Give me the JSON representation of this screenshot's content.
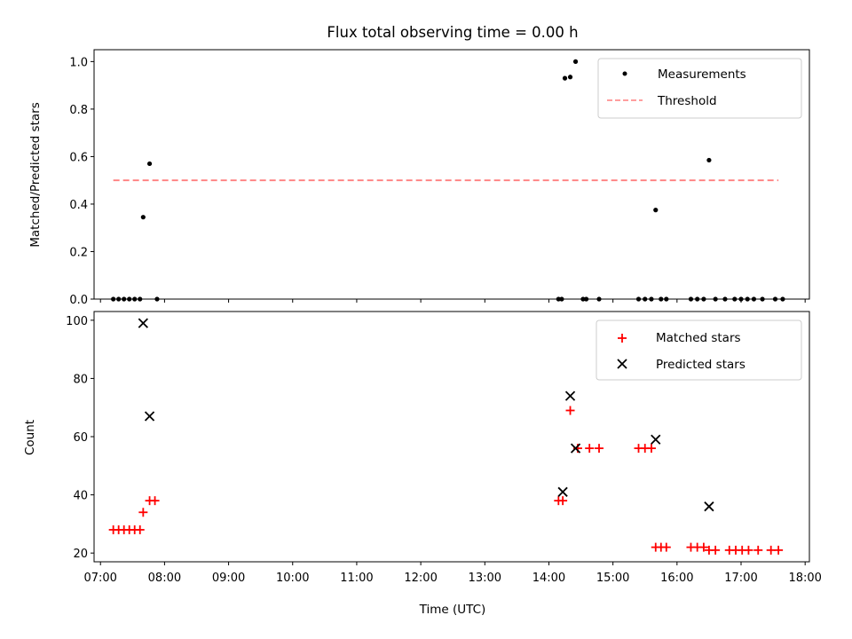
{
  "figure": {
    "title": "Flux total observing time = 0.00 h",
    "xlabel": "Time (UTC)",
    "xticks": [
      "07:00",
      "08:00",
      "09:00",
      "10:00",
      "11:00",
      "12:00",
      "13:00",
      "14:00",
      "15:00",
      "16:00",
      "17:00",
      "18:00"
    ]
  },
  "chart_data": [
    {
      "type": "scatter",
      "title": "Flux total observing time = 0.00 h",
      "xlabel": "",
      "ylabel": "Matched/Predicted stars",
      "xlim": [
        "06:54",
        "18:04"
      ],
      "ylim": [
        0,
        1.05
      ],
      "yticks": [
        "0.0",
        "0.2",
        "0.4",
        "0.6",
        "0.8",
        "1.0"
      ],
      "legend_position": "top-right",
      "series": [
        {
          "name": "Measurements",
          "marker": "dot",
          "color": "#000000",
          "points": [
            [
              "07:12",
              0
            ],
            [
              "07:17",
              0
            ],
            [
              "07:22",
              0
            ],
            [
              "07:27",
              0
            ],
            [
              "07:32",
              0
            ],
            [
              "07:37",
              0
            ],
            [
              "07:40",
              0.345
            ],
            [
              "07:46",
              0.57
            ],
            [
              "07:53",
              0
            ],
            [
              "14:09",
              0
            ],
            [
              "14:12",
              0
            ],
            [
              "14:15",
              0.93
            ],
            [
              "14:20",
              0.935
            ],
            [
              "14:25",
              1.0
            ],
            [
              "14:32",
              0
            ],
            [
              "14:35",
              0
            ],
            [
              "14:47",
              0
            ],
            [
              "15:24",
              0
            ],
            [
              "15:30",
              0
            ],
            [
              "15:36",
              0
            ],
            [
              "15:40",
              0.375
            ],
            [
              "15:45",
              0
            ],
            [
              "15:50",
              0
            ],
            [
              "16:13",
              0
            ],
            [
              "16:19",
              0
            ],
            [
              "16:25",
              0
            ],
            [
              "16:30",
              0.585
            ],
            [
              "16:36",
              0
            ],
            [
              "16:45",
              0
            ],
            [
              "16:54",
              0
            ],
            [
              "17:00",
              0
            ],
            [
              "17:06",
              0
            ],
            [
              "17:12",
              0
            ],
            [
              "17:20",
              0
            ],
            [
              "17:32",
              0
            ],
            [
              "17:39",
              0
            ]
          ]
        },
        {
          "name": "Threshold",
          "style": "dashed",
          "color": "#ff7f7f",
          "points": [
            [
              "07:12",
              0.5
            ],
            [
              "17:35",
              0.5
            ]
          ]
        }
      ]
    },
    {
      "type": "scatter",
      "xlabel": "Time (UTC)",
      "ylabel": "Count",
      "xlim": [
        "06:54",
        "18:04"
      ],
      "ylim": [
        17,
        103
      ],
      "yticks": [
        "20",
        "40",
        "60",
        "80",
        "100"
      ],
      "legend_position": "top-right",
      "series": [
        {
          "name": "Matched stars",
          "marker": "plus",
          "color": "#ff0000",
          "points": [
            [
              "07:12",
              28
            ],
            [
              "07:17",
              28
            ],
            [
              "07:22",
              28
            ],
            [
              "07:27",
              28
            ],
            [
              "07:32",
              28
            ],
            [
              "07:37",
              28
            ],
            [
              "07:40",
              34
            ],
            [
              "07:46",
              38
            ],
            [
              "07:51",
              38
            ],
            [
              "14:09",
              38
            ],
            [
              "14:13",
              38
            ],
            [
              "14:20",
              69
            ],
            [
              "14:27",
              56
            ],
            [
              "14:38",
              56
            ],
            [
              "14:47",
              56
            ],
            [
              "15:24",
              56
            ],
            [
              "15:30",
              56
            ],
            [
              "15:36",
              56
            ],
            [
              "15:40",
              22
            ],
            [
              "15:45",
              22
            ],
            [
              "15:50",
              22
            ],
            [
              "16:13",
              22
            ],
            [
              "16:19",
              22
            ],
            [
              "16:25",
              22
            ],
            [
              "16:30",
              21
            ],
            [
              "16:36",
              21
            ],
            [
              "16:49",
              21
            ],
            [
              "16:55",
              21
            ],
            [
              "17:01",
              21
            ],
            [
              "17:07",
              21
            ],
            [
              "17:16",
              21
            ],
            [
              "17:28",
              21
            ],
            [
              "17:35",
              21
            ]
          ]
        },
        {
          "name": "Predicted stars",
          "marker": "x",
          "color": "#000000",
          "points": [
            [
              "07:40",
              99
            ],
            [
              "07:46",
              67
            ],
            [
              "14:13",
              41
            ],
            [
              "14:20",
              74
            ],
            [
              "14:25",
              56
            ],
            [
              "15:40",
              59
            ],
            [
              "16:30",
              36
            ]
          ]
        }
      ]
    }
  ]
}
